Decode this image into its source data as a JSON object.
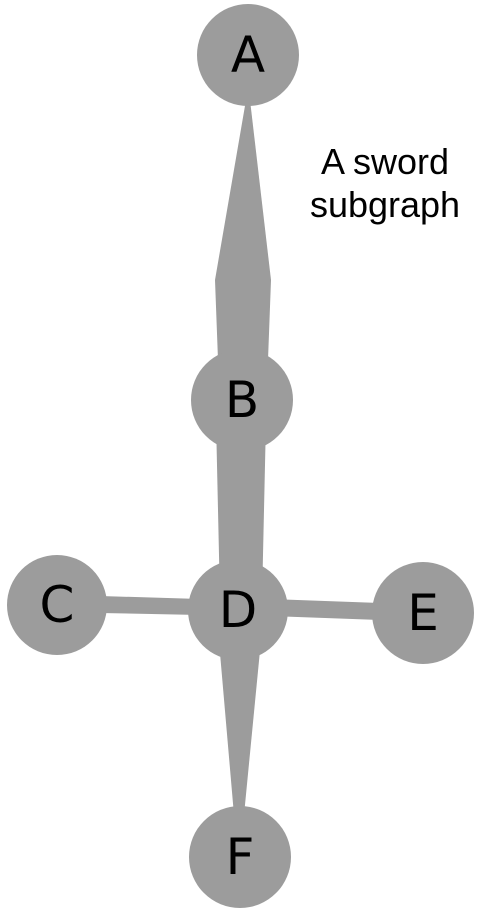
{
  "caption": {
    "line1": "A sword",
    "line2": "subgraph"
  },
  "colors": {
    "node": "#9c9c9c",
    "edge": "#9c9c9c",
    "label": "#000000",
    "background": "#ffffff"
  },
  "nodes": [
    {
      "id": "A",
      "label": "A"
    },
    {
      "id": "B",
      "label": "B"
    },
    {
      "id": "C",
      "label": "C"
    },
    {
      "id": "D",
      "label": "D"
    },
    {
      "id": "E",
      "label": "E"
    },
    {
      "id": "F",
      "label": "F"
    }
  ],
  "edges": [
    {
      "from": "A",
      "to": "B",
      "style": "tapered-blade"
    },
    {
      "from": "B",
      "to": "D",
      "style": "tapered"
    },
    {
      "from": "C",
      "to": "D",
      "style": "line"
    },
    {
      "from": "D",
      "to": "E",
      "style": "line"
    },
    {
      "from": "D",
      "to": "F",
      "style": "tapered"
    }
  ]
}
